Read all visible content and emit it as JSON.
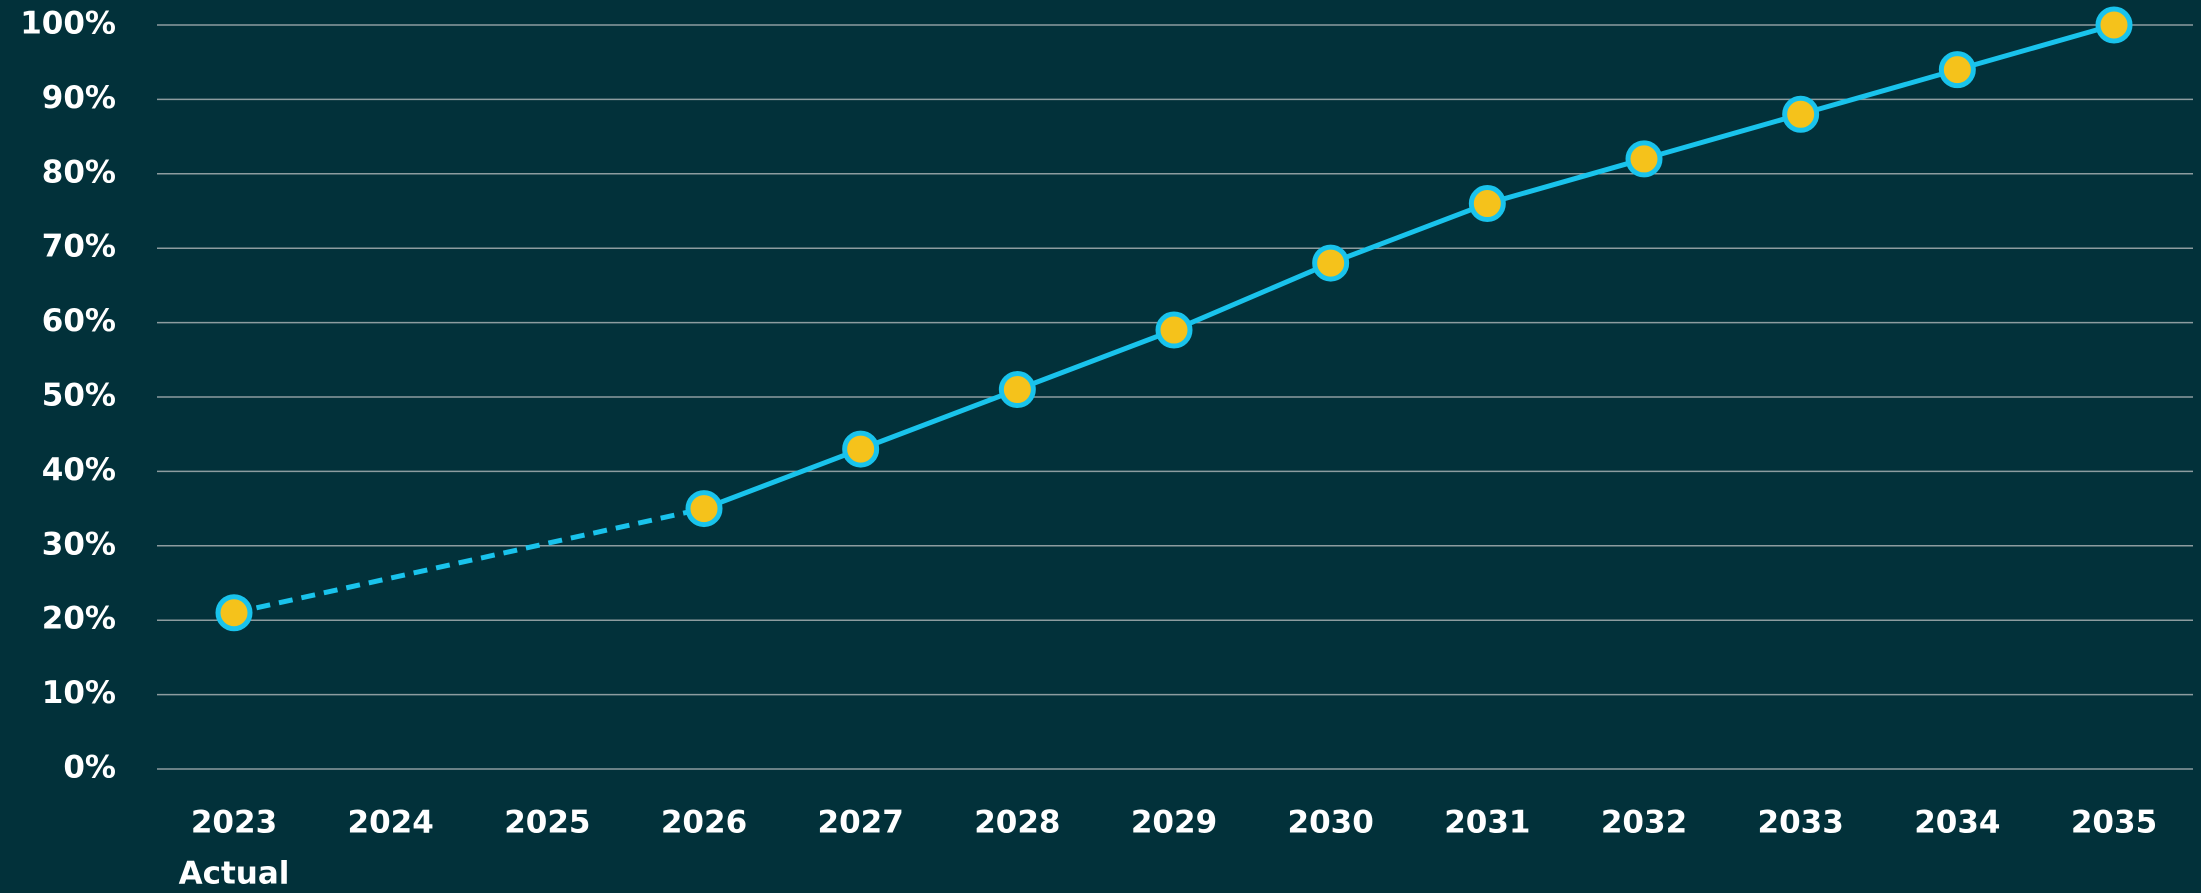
{
  "chart_data": {
    "type": "line",
    "categories": [
      "2023",
      "2024",
      "2025",
      "2026",
      "2027",
      "2028",
      "2029",
      "2030",
      "2031",
      "2032",
      "2033",
      "2034",
      "2035"
    ],
    "category_note": "Actual",
    "series": [
      {
        "color": "#19c3ec",
        "marker_color": "#f5c21b",
        "values": [
          21,
          null,
          null,
          35,
          43,
          51,
          59,
          68,
          76,
          82,
          88,
          94,
          100
        ]
      }
    ],
    "gap_style": "dashed",
    "ylim": [
      0,
      100
    ],
    "yticks": [
      {
        "value": 0,
        "label": "0%"
      },
      {
        "value": 10,
        "label": "10%"
      },
      {
        "value": 20,
        "label": "20%"
      },
      {
        "value": 30,
        "label": "30%"
      },
      {
        "value": 40,
        "label": "40%"
      },
      {
        "value": 50,
        "label": "50%"
      },
      {
        "value": 60,
        "label": "60%"
      },
      {
        "value": 70,
        "label": "70%"
      },
      {
        "value": 80,
        "label": "80%"
      },
      {
        "value": 90,
        "label": "90%"
      },
      {
        "value": 100,
        "label": "100%"
      }
    ],
    "grid": true
  }
}
